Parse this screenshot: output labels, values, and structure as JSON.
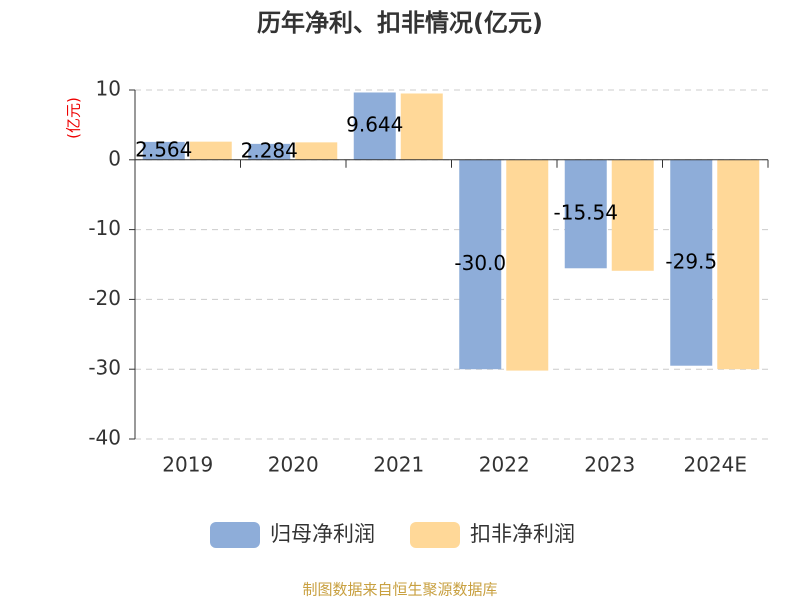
{
  "chart_data": {
    "type": "bar",
    "title": "历年净利、扣非情况(亿元)",
    "y_label": "(亿元)",
    "categories": [
      "2019",
      "2020",
      "2021",
      "2022",
      "2023",
      "2024E"
    ],
    "series": [
      {
        "name": "归母净利润",
        "color": "#8eadd9",
        "values": [
          2.564,
          2.284,
          9.644,
          -30.0,
          -15.54,
          -29.5
        ],
        "value_labels": [
          "2.564",
          "2.284",
          "9.644",
          "-30.0",
          "-15.54",
          "-29.5"
        ]
      },
      {
        "name": "扣非净利润",
        "color": "#ffd898",
        "values": [
          2.6,
          2.5,
          9.5,
          -30.2,
          -15.9,
          -30.0
        ]
      }
    ],
    "ylim": [
      -40,
      10
    ],
    "yticks": [
      -40,
      -30,
      -20,
      -10,
      0,
      10
    ],
    "grid": true,
    "source": "制图数据来自恒生聚源数据库"
  }
}
